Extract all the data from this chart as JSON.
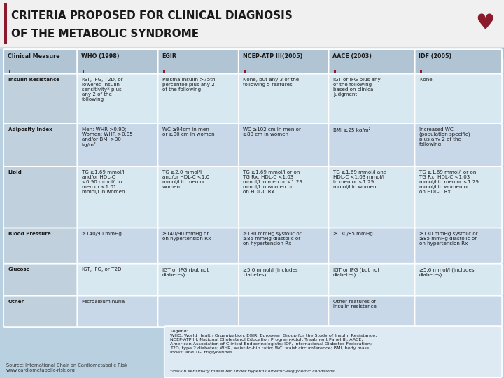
{
  "title_line1": "CRITERIA PROPOSED FOR CLINICAL DIAGNOSIS",
  "title_line2": "OF THE METABOLIC SYNDROME",
  "title_bg": "#f0f0f0",
  "title_color": "#1a1a1a",
  "page_bg": "#b8d0e0",
  "accent_color": "#8b1a2a",
  "cell_bg_light": "#d8e8f0",
  "cell_bg_dark": "#c8d8e8",
  "header_bg": "#b0c4d4",
  "label_col_bg": "#c0d0dc",
  "columns": [
    "Clinical Measure",
    "WHO (1998)",
    "EGIR",
    "NCEP-ATP III(2005)",
    "AACE (2003)",
    "IDF (2005)"
  ],
  "rows": [
    {
      "label": "Insulin Resistance",
      "who": "IGT, IFG, T2D, or\nlowered insulin\nsensitivity* plus\nany 2 of the\nfollowing",
      "egir": "Plasma insulin >75th\npercentile plus any 2\nof the following",
      "ncep": "None, but any 3 of the\nfollowing 5 features",
      "aace": "IGT or IFG plus any\nof the following\nbased on clinical\njudgment",
      "idf": "None"
    },
    {
      "label": "Adiposity Index",
      "who": "Men: WHR >0.90;\nWomen: WHR >0.85\nand/or BMI >30\nkg/m²",
      "egir": "WC ≥94cm in men\nor ≥80 cm in women",
      "ncep": "WC ≥102 cm in men or\n≥88 cm in women",
      "aace": "BMI ≥25 kg/m²",
      "idf": "Increased WC\n(population specific)\nplus any 2 of the\nfollowing"
    },
    {
      "label": "Lipid",
      "who": "TG ≥1.69 mmol/l\nand/or HDL-C\n<0.90 mmol/l in\nmen or <1.01\nmmol/l in women",
      "egir": "TG ≥2.0 mmol/l\nand/or HDL-C <1.0\nmmol/l in men or\nwomen",
      "ncep": "TG ≥1.69 mmol/l or on\nTG Rx; HDL-C <1.03\nmmol/l in men or <1.29\nmmol/l in women or\non HDL-C Rx",
      "aace": "TG ≥1.69 mmol/l and\nHDL-C <1.03 mmol/l\nin men or <1.29\nmmol/l in women",
      "idf": "TG ≥1.69 mmol/l or on\nTG Rx; HDL-C <1.03\nmmol/l in men or <1.29\nmmol/l in women or\non HDL-C Rx"
    },
    {
      "label": "Blood Pressure",
      "who": "≥140/90 mmHg",
      "egir": "≥140/90 mmHg or\non hypertension Rx",
      "ncep": "≥130 mmHg systolic or\n≥85 mmHg diastolic or\non hypertension Rx",
      "aace": "≥130/85 mmHg",
      "idf": "≥130 mmHg systolic or\n≥85 mmHg diastolic or\non hypertension Rx"
    },
    {
      "label": "Glucose",
      "who": "IGT, IFG, or T2D",
      "egir": "IGT or IFG (but not\ndiabetes)",
      "ncep": "≥5.6 mmol/l (includes\ndiabetes)",
      "aace": "IGT or IFG (but not\ndiabetes)",
      "idf": "≥5.6 mmol/l (includes\ndiabetes)"
    },
    {
      "label": "Other",
      "who": "Microalbuminuria",
      "egir": "",
      "ncep": "",
      "aace": "Other features of\ninsulin resistance",
      "idf": ""
    }
  ],
  "legend_text": "Legend:\nWHO, World Health Organization; EGIR, European Group for the Study of Insulin Resistance;\nNCEP-ATP III, National Cholesterol Education Program-Adult Treatment Panel III; AACE,\nAmerican Association of Clinical Endocrinologists; IDF, International Diabetes Federation;\nT2D, type 2 diabetes; WHR, waist-to-hip ratio; WC, waist circumference; BMI, body mass\nindex; and TG, triglycerides.",
  "footnote": "*Insulin sensitivity measured under hyperinsulinemic-euglycemic conditions.",
  "source": "Source: International Chair on Cardiometabolic Risk\nwww.cardiometabolic-risk.org"
}
